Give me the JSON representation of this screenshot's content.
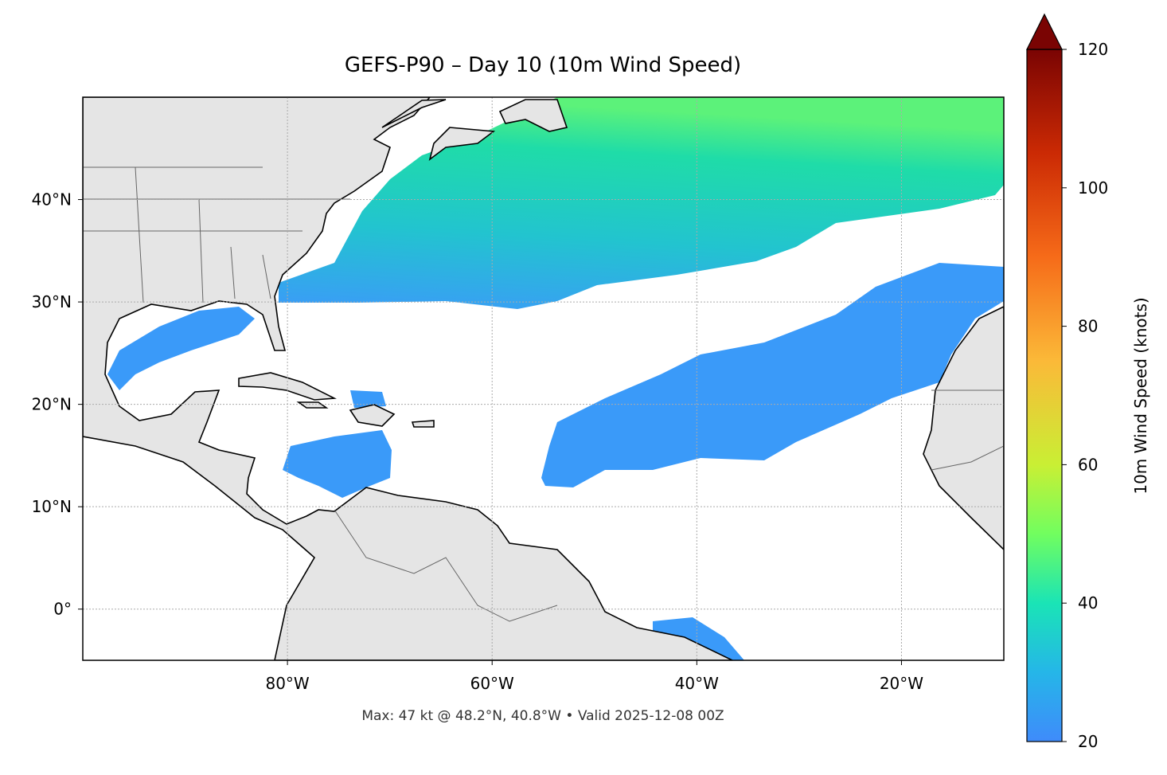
{
  "title": "GEFS-P90 – Day 10 (10m Wind Speed)",
  "footer": "Max: 47 kt @ 48.2°N, 40.8°W • Valid 2025-12-08 00Z",
  "map": {
    "lon_range": [
      -100,
      -10
    ],
    "lat_range": [
      -5,
      50
    ],
    "lon_ticks": [
      {
        "value": -80,
        "label": "80°W"
      },
      {
        "value": -60,
        "label": "60°W"
      },
      {
        "value": -40,
        "label": "40°W"
      },
      {
        "value": -20,
        "label": "20°W"
      }
    ],
    "lat_ticks": [
      {
        "value": 0,
        "label": "0°"
      },
      {
        "value": 10,
        "label": "10°N"
      },
      {
        "value": 20,
        "label": "20°N"
      },
      {
        "value": 30,
        "label": "30°N"
      },
      {
        "value": 40,
        "label": "40°N"
      }
    ]
  },
  "colorbar": {
    "label": "10m Wind Speed (knots)",
    "range": [
      20,
      120
    ],
    "ticks": [
      20,
      40,
      60,
      80,
      100,
      120
    ]
  }
}
